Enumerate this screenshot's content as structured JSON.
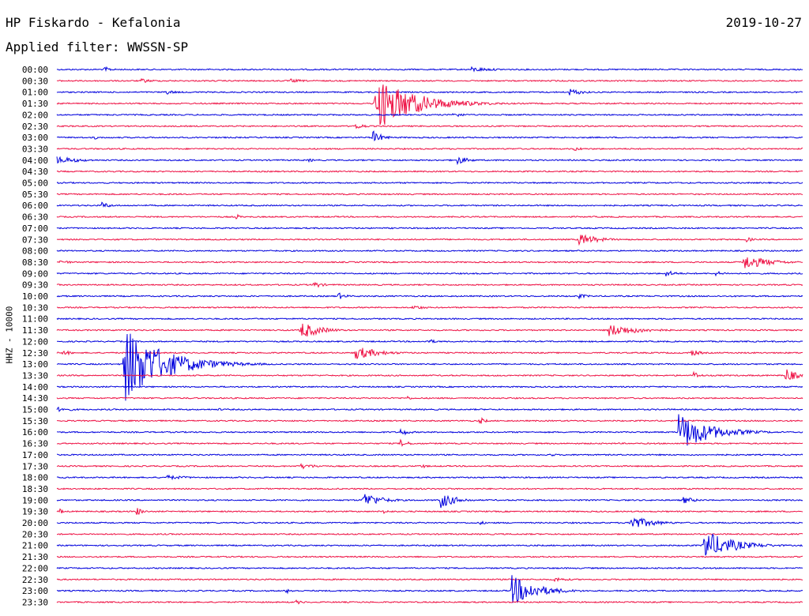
{
  "header": {
    "station": "HP Fiskardo - Kefalonia",
    "date": "2019-10-27",
    "filter_text": "Applied filter: WWSSN-SP",
    "channel_label": "HHZ - 10000"
  },
  "colors": {
    "blue": "#0000dd",
    "red": "#ee1144"
  },
  "chart_data": {
    "type": "line",
    "title": "HP Fiskardo - Kefalonia",
    "subtitle": "Applied filter: WWSSN-SP",
    "ylabel": "HHZ - 10000",
    "legend": "none",
    "grid": false,
    "trace_duration_minutes": 30,
    "rows": [
      "00:00",
      "00:30",
      "01:00",
      "01:30",
      "02:00",
      "02:30",
      "03:00",
      "03:30",
      "04:00",
      "04:30",
      "05:00",
      "05:30",
      "06:00",
      "06:30",
      "07:00",
      "07:30",
      "08:00",
      "08:30",
      "09:00",
      "09:30",
      "10:00",
      "10:30",
      "11:00",
      "11:30",
      "12:00",
      "12:30",
      "13:00",
      "13:30",
      "14:00",
      "14:30",
      "15:00",
      "15:30",
      "16:00",
      "16:30",
      "17:00",
      "17:30",
      "18:00",
      "18:30",
      "19:00",
      "19:30",
      "20:00",
      "20:30",
      "21:00",
      "21:30",
      "22:00",
      "22:30",
      "23:00",
      "23:30"
    ],
    "row_colors": [
      "blue",
      "red"
    ],
    "events": [
      {
        "row": 0,
        "minute": 1.9,
        "amplitude": 0.4,
        "duration": 0.5
      },
      {
        "row": 0,
        "minute": 16.6,
        "amplitude": 0.35,
        "duration": 1.6
      },
      {
        "row": 1,
        "minute": 3.4,
        "amplitude": 0.3,
        "duration": 0.8
      },
      {
        "row": 1,
        "minute": 9.4,
        "amplitude": 0.25,
        "duration": 1.0
      },
      {
        "row": 2,
        "minute": 4.3,
        "amplitude": 0.35,
        "duration": 0.8
      },
      {
        "row": 2,
        "minute": 20.6,
        "amplitude": 0.5,
        "duration": 0.9
      },
      {
        "row": 3,
        "minute": 12.8,
        "amplitude": 3.5,
        "duration": 2.5
      },
      {
        "row": 4,
        "minute": 15.9,
        "amplitude": 0.35,
        "duration": 0.8
      },
      {
        "row": 5,
        "minute": 12.0,
        "amplitude": 0.5,
        "duration": 0.6
      },
      {
        "row": 6,
        "minute": 1.5,
        "amplitude": 0.3,
        "duration": 0.3
      },
      {
        "row": 6,
        "minute": 12.7,
        "amplitude": 0.9,
        "duration": 0.6
      },
      {
        "row": 7,
        "minute": 20.8,
        "amplitude": 0.25,
        "duration": 0.8
      },
      {
        "row": 7,
        "minute": 30.0,
        "amplitude": 0.5,
        "duration": 0.3
      },
      {
        "row": 8,
        "minute": 0.0,
        "amplitude": 0.5,
        "duration": 1.5
      },
      {
        "row": 8,
        "minute": 10.1,
        "amplitude": 0.3,
        "duration": 0.4
      },
      {
        "row": 8,
        "minute": 16.1,
        "amplitude": 0.55,
        "duration": 0.8
      },
      {
        "row": 12,
        "minute": 1.8,
        "amplitude": 0.45,
        "duration": 0.6
      },
      {
        "row": 13,
        "minute": 7.2,
        "amplitude": 0.4,
        "duration": 0.3
      },
      {
        "row": 15,
        "minute": 21.0,
        "amplitude": 0.8,
        "duration": 1.2
      },
      {
        "row": 15,
        "minute": 27.7,
        "amplitude": 0.45,
        "duration": 0.4
      },
      {
        "row": 17,
        "minute": 0.1,
        "amplitude": 0.3,
        "duration": 0.8
      },
      {
        "row": 17,
        "minute": 27.6,
        "amplitude": 1.0,
        "duration": 1.6
      },
      {
        "row": 18,
        "minute": 24.5,
        "amplitude": 0.4,
        "duration": 0.8
      },
      {
        "row": 18,
        "minute": 26.5,
        "amplitude": 0.3,
        "duration": 0.7
      },
      {
        "row": 19,
        "minute": 10.3,
        "amplitude": 0.5,
        "duration": 0.6
      },
      {
        "row": 20,
        "minute": 11.3,
        "amplitude": 0.5,
        "duration": 0.5
      },
      {
        "row": 20,
        "minute": 21.0,
        "amplitude": 0.3,
        "duration": 0.7
      },
      {
        "row": 21,
        "minute": 14.3,
        "amplitude": 0.35,
        "duration": 0.8
      },
      {
        "row": 23,
        "minute": 9.8,
        "amplitude": 1.2,
        "duration": 1.2
      },
      {
        "row": 23,
        "minute": 22.2,
        "amplitude": 0.8,
        "duration": 2.0
      },
      {
        "row": 24,
        "minute": 14.9,
        "amplitude": 0.4,
        "duration": 0.5
      },
      {
        "row": 25,
        "minute": 0.2,
        "amplitude": 0.4,
        "duration": 0.6
      },
      {
        "row": 25,
        "minute": 12.0,
        "amplitude": 0.9,
        "duration": 1.5
      },
      {
        "row": 25,
        "minute": 25.5,
        "amplitude": 0.5,
        "duration": 0.6
      },
      {
        "row": 26,
        "minute": 2.7,
        "amplitude": 5.0,
        "duration": 2.5
      },
      {
        "row": 27,
        "minute": 25.6,
        "amplitude": 0.6,
        "duration": 0.4
      },
      {
        "row": 27,
        "minute": 29.3,
        "amplitude": 1.0,
        "duration": 0.7
      },
      {
        "row": 29,
        "minute": 14.1,
        "amplitude": 0.3,
        "duration": 0.3
      },
      {
        "row": 30,
        "minute": 0.0,
        "amplitude": 0.3,
        "duration": 1.2
      },
      {
        "row": 30,
        "minute": 6.5,
        "amplitude": 0.3,
        "duration": 0.2
      },
      {
        "row": 31,
        "minute": 17.0,
        "amplitude": 0.5,
        "duration": 0.4
      },
      {
        "row": 32,
        "minute": 13.8,
        "amplitude": 0.5,
        "duration": 0.6
      },
      {
        "row": 32,
        "minute": 25.0,
        "amplitude": 2.5,
        "duration": 2.0
      },
      {
        "row": 33,
        "minute": 13.8,
        "amplitude": 0.5,
        "duration": 0.6
      },
      {
        "row": 34,
        "minute": 19.8,
        "amplitude": 0.25,
        "duration": 0.5
      },
      {
        "row": 35,
        "minute": 9.8,
        "amplitude": 0.35,
        "duration": 1.2
      },
      {
        "row": 35,
        "minute": 14.6,
        "amplitude": 0.4,
        "duration": 0.4
      },
      {
        "row": 36,
        "minute": 4.4,
        "amplitude": 0.3,
        "duration": 1.6
      },
      {
        "row": 38,
        "minute": 12.3,
        "amplitude": 1.1,
        "duration": 1.1
      },
      {
        "row": 38,
        "minute": 15.4,
        "amplitude": 1.1,
        "duration": 1.0
      },
      {
        "row": 38,
        "minute": 25.2,
        "amplitude": 0.5,
        "duration": 0.7
      },
      {
        "row": 39,
        "minute": 0.1,
        "amplitude": 0.4,
        "duration": 0.3
      },
      {
        "row": 39,
        "minute": 3.2,
        "amplitude": 0.6,
        "duration": 0.4
      },
      {
        "row": 39,
        "minute": 13.1,
        "amplitude": 0.3,
        "duration": 0.6
      },
      {
        "row": 40,
        "minute": 17.0,
        "amplitude": 0.3,
        "duration": 0.4
      },
      {
        "row": 40,
        "minute": 23.0,
        "amplitude": 1.0,
        "duration": 1.4
      },
      {
        "row": 42,
        "minute": 26.0,
        "amplitude": 2.0,
        "duration": 1.8
      },
      {
        "row": 45,
        "minute": 20.0,
        "amplitude": 0.3,
        "duration": 1.0
      },
      {
        "row": 46,
        "minute": 9.2,
        "amplitude": 0.35,
        "duration": 0.5
      },
      {
        "row": 46,
        "minute": 18.3,
        "amplitude": 2.0,
        "duration": 1.6
      },
      {
        "row": 47,
        "minute": 9.6,
        "amplitude": 0.3,
        "duration": 0.6
      }
    ]
  }
}
